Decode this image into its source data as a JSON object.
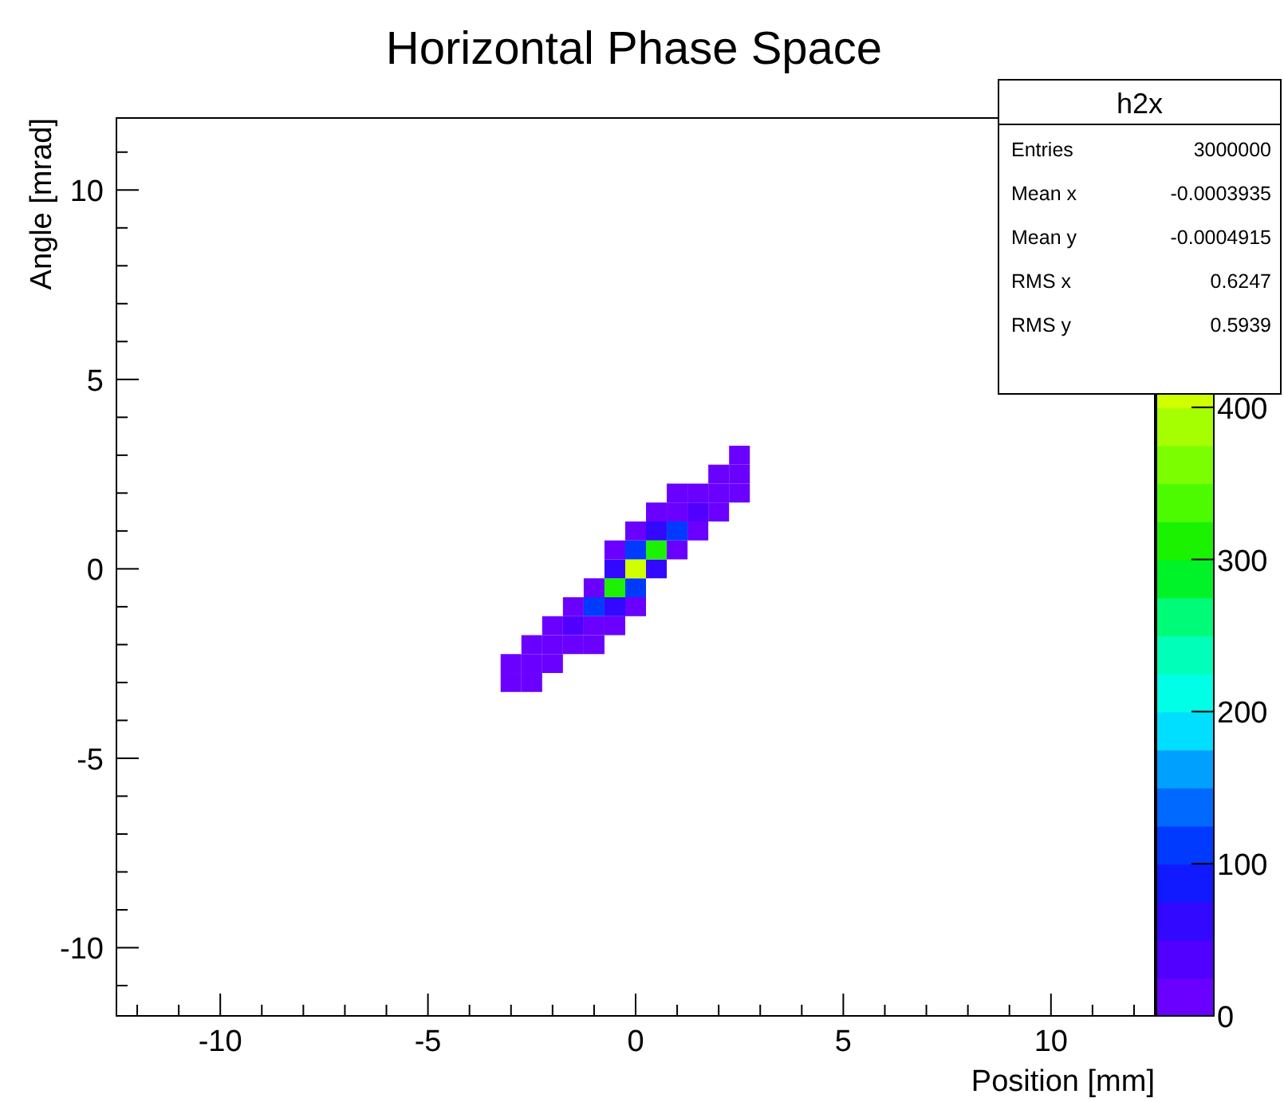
{
  "chart_data": {
    "type": "scatter",
    "title": "Horizontal Phase Space",
    "xlabel": "Position [mm]",
    "ylabel": "Angle [mrad]",
    "annotations": [
      "h2x",
      "Entries 3000000",
      "Mean x -0.0003935",
      "Mean y -0.0004915",
      "RMS x 0.6247",
      "RMS y 0.5939"
    ],
    "marker": "square",
    "xlim": [
      -12.5,
      12.5
    ],
    "ylim": [
      -11.8,
      11.9
    ],
    "xticks": [
      {
        "value": -12,
        "label": null
      },
      {
        "value": -11,
        "label": null
      },
      -10,
      {
        "value": -9,
        "label": null
      },
      {
        "value": -8,
        "label": null
      },
      {
        "value": -7,
        "label": null
      },
      {
        "value": -6,
        "label": null
      },
      -5,
      {
        "value": -4,
        "label": null
      },
      {
        "value": -3,
        "label": null
      },
      {
        "value": -2,
        "label": null
      },
      {
        "value": -1,
        "label": null
      },
      0,
      {
        "value": 1,
        "label": null
      },
      {
        "value": 2,
        "label": null
      },
      {
        "value": 3,
        "label": null
      },
      {
        "value": 4,
        "label": null
      },
      5,
      {
        "value": 6,
        "label": null
      },
      {
        "value": 7,
        "label": null
      },
      {
        "value": 8,
        "label": null
      },
      {
        "value": 9,
        "label": null
      },
      10,
      {
        "value": 11,
        "label": null
      },
      {
        "value": 12,
        "label": null
      }
    ],
    "yticks": [
      {
        "value": -11,
        "label": null
      },
      -10,
      {
        "value": -9,
        "label": null
      },
      {
        "value": -8,
        "label": null
      },
      {
        "value": -7,
        "label": null
      },
      {
        "value": -6,
        "label": null
      },
      -5,
      {
        "value": -4,
        "label": null
      },
      {
        "value": -3,
        "label": null
      },
      {
        "value": -2,
        "label": null
      },
      {
        "value": -1,
        "label": null
      },
      0,
      {
        "value": 1,
        "label": null
      },
      {
        "value": 2,
        "label": null
      },
      {
        "value": 3,
        "label": null
      },
      {
        "value": 4,
        "label": null
      },
      5,
      {
        "value": 6,
        "label": null
      },
      {
        "value": 7,
        "label": null
      },
      {
        "value": 8,
        "label": null
      },
      {
        "value": 9,
        "label": null
      },
      10,
      {
        "value": 11,
        "label": null
      }
    ],
    "clim": [
      0,
      500
    ],
    "cticks": [
      0,
      100,
      200,
      300,
      400
    ],
    "x": [
      -3,
      -3,
      -2.5,
      -2.5,
      -2.5,
      -2,
      -2,
      -2,
      -1.5,
      -1.5,
      -1.5,
      -1,
      -1,
      -1,
      -1,
      -0.5,
      -0.5,
      -0.5,
      -0.5,
      -0.5,
      0,
      0,
      0,
      0,
      0,
      0.5,
      0.5,
      0.5,
      0.5,
      1,
      1,
      1,
      1,
      1.5,
      1.5,
      1.5,
      2,
      2,
      2,
      2.5,
      2.5,
      2.5
    ],
    "values": [
      -3,
      -2.5,
      -3,
      -2.5,
      -2,
      -2.5,
      -2,
      -1.5,
      -2,
      -1.5,
      -1,
      -2,
      -1.5,
      -1,
      -0.5,
      -1.5,
      -1,
      -0.5,
      0,
      0.5,
      -1,
      -0.5,
      0,
      0.5,
      1,
      0,
      0.5,
      1,
      1.5,
      0.5,
      1,
      1.5,
      2,
      1,
      1.5,
      2,
      1.5,
      2,
      2.5,
      2,
      2.5,
      3
    ],
    "cvalues": [
      2,
      1,
      1,
      5,
      2,
      3,
      15,
      3,
      5,
      40,
      8,
      2,
      20,
      110,
      20,
      5,
      50,
      300,
      50,
      5,
      10,
      120,
      410,
      120,
      10,
      60,
      300,
      50,
      5,
      20,
      120,
      20,
      3,
      8,
      40,
      5,
      3,
      15,
      3,
      2,
      5,
      1
    ]
  }
}
